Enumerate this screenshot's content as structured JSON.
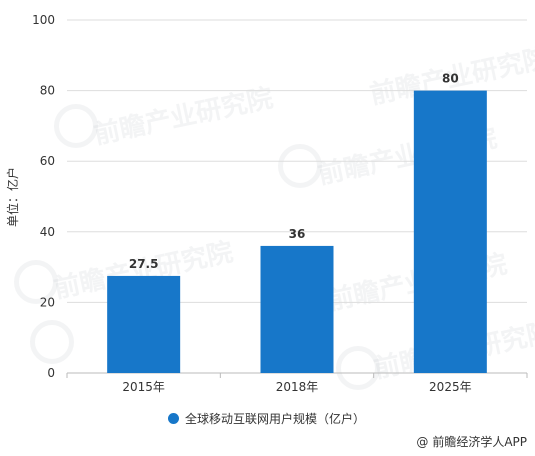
{
  "chart_data": {
    "type": "bar",
    "categories": [
      "2015年",
      "2018年",
      "2025年"
    ],
    "values": [
      27.5,
      36,
      80
    ],
    "data_labels": [
      "27.5",
      "36",
      "80"
    ],
    "ylabel": "单位：亿户",
    "ylim": [
      0,
      100
    ],
    "yticks": [
      0,
      20,
      40,
      60,
      80,
      100
    ],
    "grid": true,
    "legend": {
      "position": "bottom",
      "entries": [
        "全球移动互联网用户规模（亿户）"
      ]
    },
    "series": [
      {
        "name": "全球移动互联网用户规模（亿户）",
        "values": [
          27.5,
          36,
          80
        ]
      }
    ]
  },
  "colors": {
    "bar": "#1777c9",
    "grid": "#dddddd",
    "axis": "#bbbbbb",
    "text": "#333333"
  },
  "watermark": {
    "text": "前瞻产业研究院"
  },
  "credit": {
    "icon": "at-icon",
    "text": "前瞻经济学人APP"
  }
}
